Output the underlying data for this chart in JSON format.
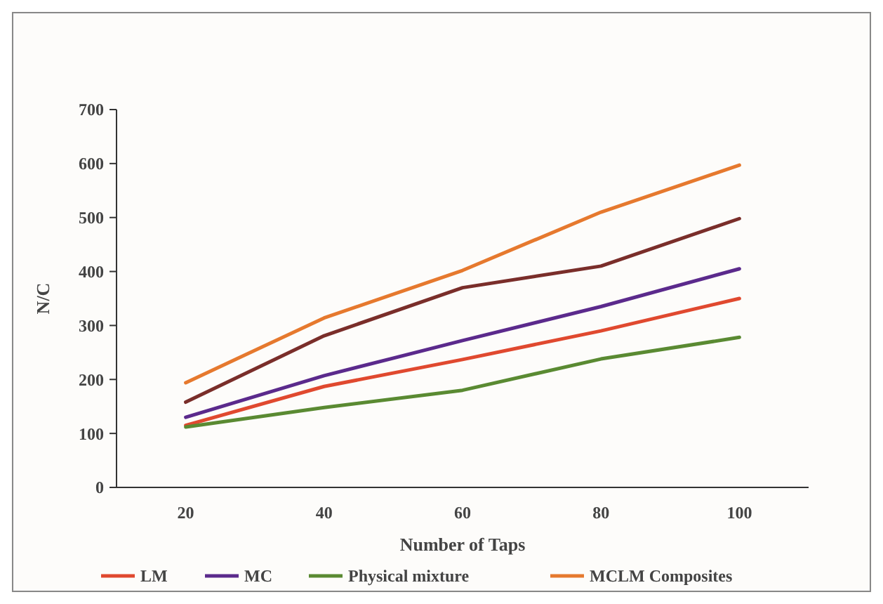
{
  "chart_data": {
    "type": "line",
    "xlabel": "Number of Taps",
    "ylabel": "N/C",
    "categories": [
      "20",
      "40",
      "60",
      "80",
      "100"
    ],
    "series": [
      {
        "name": "LM",
        "color": "#e0492f",
        "values": [
          115,
          187,
          237,
          290,
          350
        ]
      },
      {
        "name": "MC",
        "color": "#5b2a8c",
        "values": [
          130,
          207,
          272,
          335,
          405
        ]
      },
      {
        "name": "Physical mixture",
        "color": "#5a8a32",
        "values": [
          112,
          148,
          180,
          238,
          278
        ]
      },
      {
        "name": "MCLM Composites",
        "color": "#e6792e",
        "values": [
          194,
          314,
          402,
          510,
          597
        ]
      },
      {
        "color": "#7a2e2a",
        "values": [
          158,
          281,
          370,
          410,
          498
        ]
      }
    ],
    "ylim": [
      0,
      700
    ],
    "yticks": [
      0,
      100,
      200,
      300,
      400,
      500,
      600,
      700
    ],
    "legend": "bottom"
  }
}
